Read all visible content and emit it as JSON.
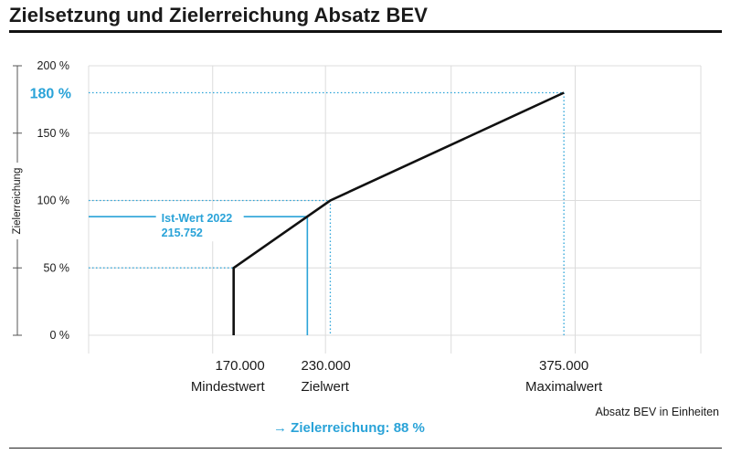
{
  "title": "Zielsetzung und Zielerreichung Absatz BEV",
  "chart_data": {
    "type": "line",
    "title": "Zielsetzung und Zielerreichung Absatz BEV",
    "ylabel": "Zielerreichung",
    "xlabel": "Absatz BEV in Einheiten",
    "ylim": [
      0,
      200
    ],
    "xlim": [
      80000,
      460000
    ],
    "yticks": [
      {
        "value": 0,
        "label": "0 %"
      },
      {
        "value": 50,
        "label": "50 %"
      },
      {
        "value": 100,
        "label": "100 %"
      },
      {
        "value": 150,
        "label": "150 %"
      },
      {
        "value": 200,
        "label": "200 %"
      }
    ],
    "x_gridlines": [
      80000,
      157000,
      227000,
      305000,
      382000,
      460000
    ],
    "series": [
      {
        "values": [
          {
            "x": 170000,
            "y": 0
          },
          {
            "x": 170000,
            "y": 50
          },
          {
            "x": 230000,
            "y": 100
          },
          {
            "x": 375000,
            "y": 180
          }
        ]
      }
    ],
    "markers": [
      {
        "x": 170000,
        "y": 50,
        "value_label": "170.000",
        "name_label": "Mindestwert"
      },
      {
        "x": 230000,
        "y": 100,
        "value_label": "230.000",
        "name_label": "Zielwert"
      },
      {
        "x": 375000,
        "y": 180,
        "value_label": "375.000",
        "name_label": "Maximalwert",
        "y_highlight": "180 %"
      }
    ],
    "actual": {
      "x": 215752,
      "y": 88,
      "label_line1": "Ist-Wert 2022",
      "label_line2": "215.752"
    },
    "result": "→ Zielerreichung: 88 %",
    "grid": true,
    "colors": {
      "curve": "#111111",
      "accent": "#2aa3d8",
      "grid": "#dcdcdc"
    }
  }
}
